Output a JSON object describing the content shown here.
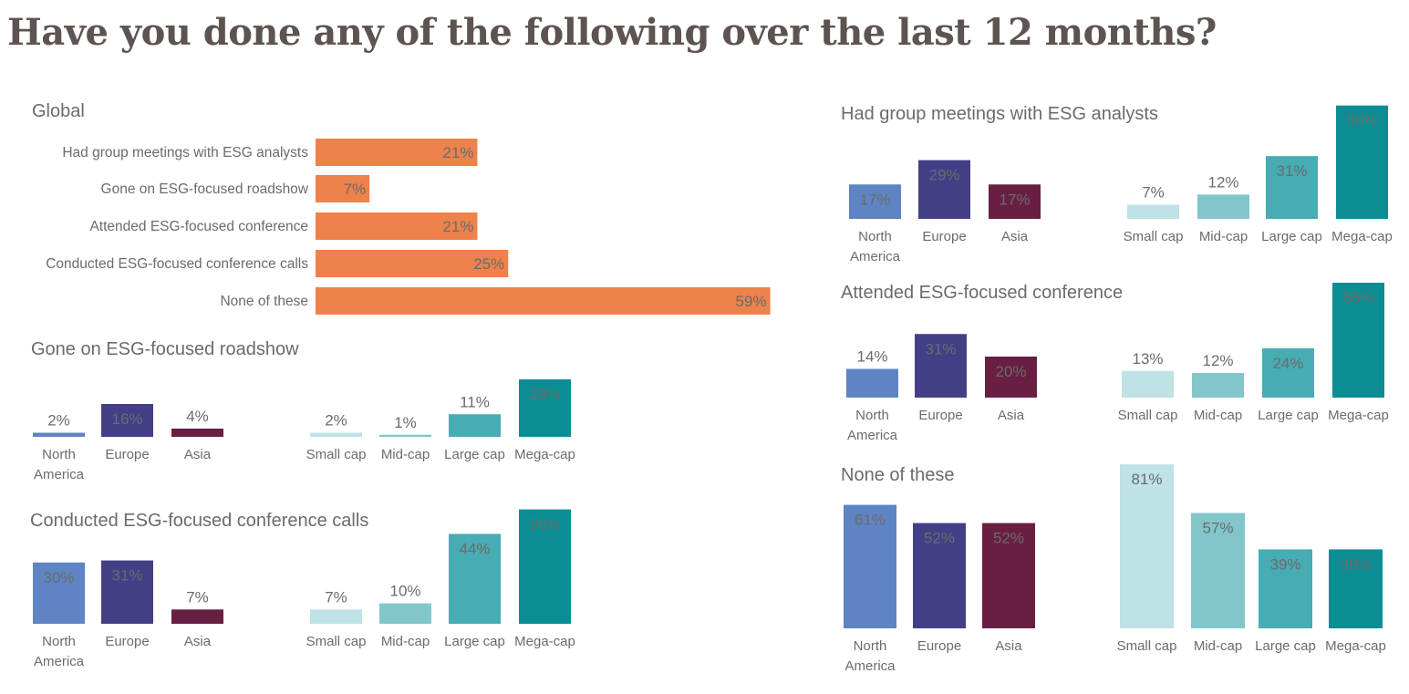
{
  "page": {
    "title": "Have you done any of the following over the last 12 months?"
  },
  "colors": {
    "global_bar": "#ed824a",
    "north_america": "#5e84c4",
    "europe": "#433f86",
    "asia": "#691f42",
    "small_cap": "#bee2e6",
    "mid_cap": "#82c6cc",
    "large_cap": "#47acb4",
    "mega_cap": "#0c8d94",
    "label_text": "#6b6b6b"
  },
  "chart_data": [
    {
      "id": "global",
      "type": "bar",
      "orientation": "horizontal",
      "title": "Global",
      "categories": [
        "Had group meetings with ESG analysts",
        "Gone on ESG-focused roadshow",
        "Attended ESG-focused conference",
        "Conducted ESG-focused conference calls",
        "None of these"
      ],
      "values": [
        21,
        7,
        21,
        25,
        59
      ],
      "value_labels": [
        "21%",
        "7%",
        "21%",
        "25%",
        "59%"
      ],
      "unit": "%"
    },
    {
      "id": "roadshow",
      "type": "bar",
      "title": "Gone on ESG-focused roadshow",
      "groups": [
        {
          "name": "region",
          "categories": [
            "North America",
            "Europe",
            "Asia"
          ],
          "values": [
            2,
            16,
            4
          ],
          "value_labels": [
            "2%",
            "16%",
            "4%"
          ]
        },
        {
          "name": "market cap",
          "categories": [
            "Small cap",
            "Mid-cap",
            "Large cap",
            "Mega-cap"
          ],
          "values": [
            2,
            1,
            11,
            28
          ],
          "value_labels": [
            "2%",
            "1%",
            "11%",
            "28%"
          ]
        }
      ]
    },
    {
      "id": "calls",
      "type": "bar",
      "title": "Conducted ESG-focused conference calls",
      "groups": [
        {
          "name": "region",
          "categories": [
            "North America",
            "Europe",
            "Asia"
          ],
          "values": [
            30,
            31,
            7
          ],
          "value_labels": [
            "30%",
            "31%",
            "7%"
          ]
        },
        {
          "name": "market cap",
          "categories": [
            "Small cap",
            "Mid-cap",
            "Large cap",
            "Mega-cap"
          ],
          "values": [
            7,
            10,
            44,
            56
          ],
          "value_labels": [
            "7%",
            "10%",
            "44%",
            "56%"
          ]
        }
      ]
    },
    {
      "id": "meetings",
      "type": "bar",
      "title": "Had group meetings with ESG analysts",
      "groups": [
        {
          "name": "region",
          "categories": [
            "North America",
            "Europe",
            "Asia"
          ],
          "values": [
            17,
            29,
            17
          ],
          "value_labels": [
            "17%",
            "29%",
            "17%"
          ]
        },
        {
          "name": "market cap",
          "categories": [
            "Small cap",
            "Mid-cap",
            "Large cap",
            "Mega-cap"
          ],
          "values": [
            7,
            12,
            31,
            56
          ],
          "value_labels": [
            "7%",
            "12%",
            "31%",
            "56%"
          ]
        }
      ]
    },
    {
      "id": "conference",
      "type": "bar",
      "title": "Attended ESG-focused conference",
      "groups": [
        {
          "name": "region",
          "categories": [
            "North America",
            "Europe",
            "Asia"
          ],
          "values": [
            14,
            31,
            20
          ],
          "value_labels": [
            "14%",
            "31%",
            "20%"
          ]
        },
        {
          "name": "market cap",
          "categories": [
            "Small cap",
            "Mid-cap",
            "Large cap",
            "Mega-cap"
          ],
          "values": [
            13,
            12,
            24,
            56
          ],
          "value_labels": [
            "13%",
            "12%",
            "24%",
            "56%"
          ]
        }
      ]
    },
    {
      "id": "none",
      "type": "bar",
      "title": "None of these",
      "groups": [
        {
          "name": "region",
          "categories": [
            "North America",
            "Europe",
            "Asia"
          ],
          "values": [
            61,
            52,
            52
          ],
          "value_labels": [
            "61%",
            "52%",
            "52%"
          ]
        },
        {
          "name": "market cap",
          "categories": [
            "Small cap",
            "Mid-cap",
            "Large cap",
            "Mega-cap"
          ],
          "values": [
            81,
            57,
            39,
            39
          ],
          "value_labels": [
            "81%",
            "57%",
            "39%",
            "39%"
          ]
        }
      ]
    }
  ]
}
